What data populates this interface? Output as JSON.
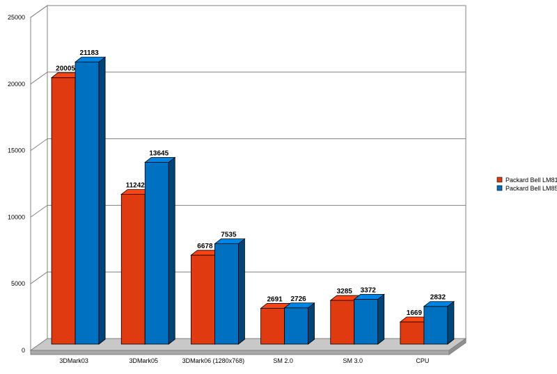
{
  "chart_data": {
    "type": "bar",
    "categories": [
      "3DMark03",
      "3DMark05",
      "3DMark06 (1280x768)",
      "SM 2.0",
      "SM 3.0",
      "CPU"
    ],
    "series": [
      {
        "name": "Packard Bell LM81",
        "color": "#e03a10",
        "values": [
          20005,
          11242,
          6678,
          2691,
          3285,
          1669
        ]
      },
      {
        "name": "Packard Bell LM85",
        "color": "#0070c0",
        "values": [
          21183,
          13645,
          7535,
          2726,
          3372,
          2832
        ]
      }
    ],
    "yticks": [
      "0",
      "5000",
      "10000",
      "15000",
      "20000",
      "25000"
    ],
    "ylim": [
      0,
      25000
    ],
    "grid": true,
    "legend": "right",
    "title": "",
    "xlabel": "",
    "ylabel": ""
  }
}
